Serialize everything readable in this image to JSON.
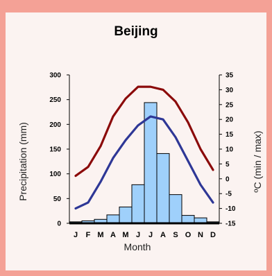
{
  "chart_data": {
    "type": "bar",
    "title": "Beijing",
    "xlabel": "Month",
    "ylabel": "Precipitation (mm)",
    "y2label": "ºC (min / max)",
    "categories": [
      "J",
      "F",
      "M",
      "A",
      "M",
      "J",
      "J",
      "A",
      "S",
      "O",
      "N",
      "D"
    ],
    "ylim": [
      0,
      300
    ],
    "y2lim": [
      -15,
      35
    ],
    "yticks": [
      0,
      50,
      100,
      150,
      200,
      250,
      300
    ],
    "y2ticks": [
      -15,
      -10,
      -5,
      0,
      5,
      10,
      15,
      20,
      25,
      30,
      35
    ],
    "series": [
      {
        "kind": "bar",
        "axis": "left",
        "color": "#9fd0fb",
        "values": [
          3,
          5,
          8,
          17,
          33,
          78,
          244,
          141,
          58,
          16,
          11,
          3
        ]
      },
      {
        "kind": "line",
        "axis": "right",
        "color": "#8b0a0a",
        "values": [
          1,
          4,
          11,
          21,
          27,
          31,
          31,
          30,
          26,
          19,
          10,
          3
        ]
      },
      {
        "kind": "line",
        "axis": "right",
        "color": "#2e3796",
        "values": [
          -10,
          -8,
          -1,
          7,
          13,
          18,
          21,
          20,
          14,
          6,
          -2,
          -8
        ]
      }
    ],
    "grid": false,
    "legend": "none"
  }
}
